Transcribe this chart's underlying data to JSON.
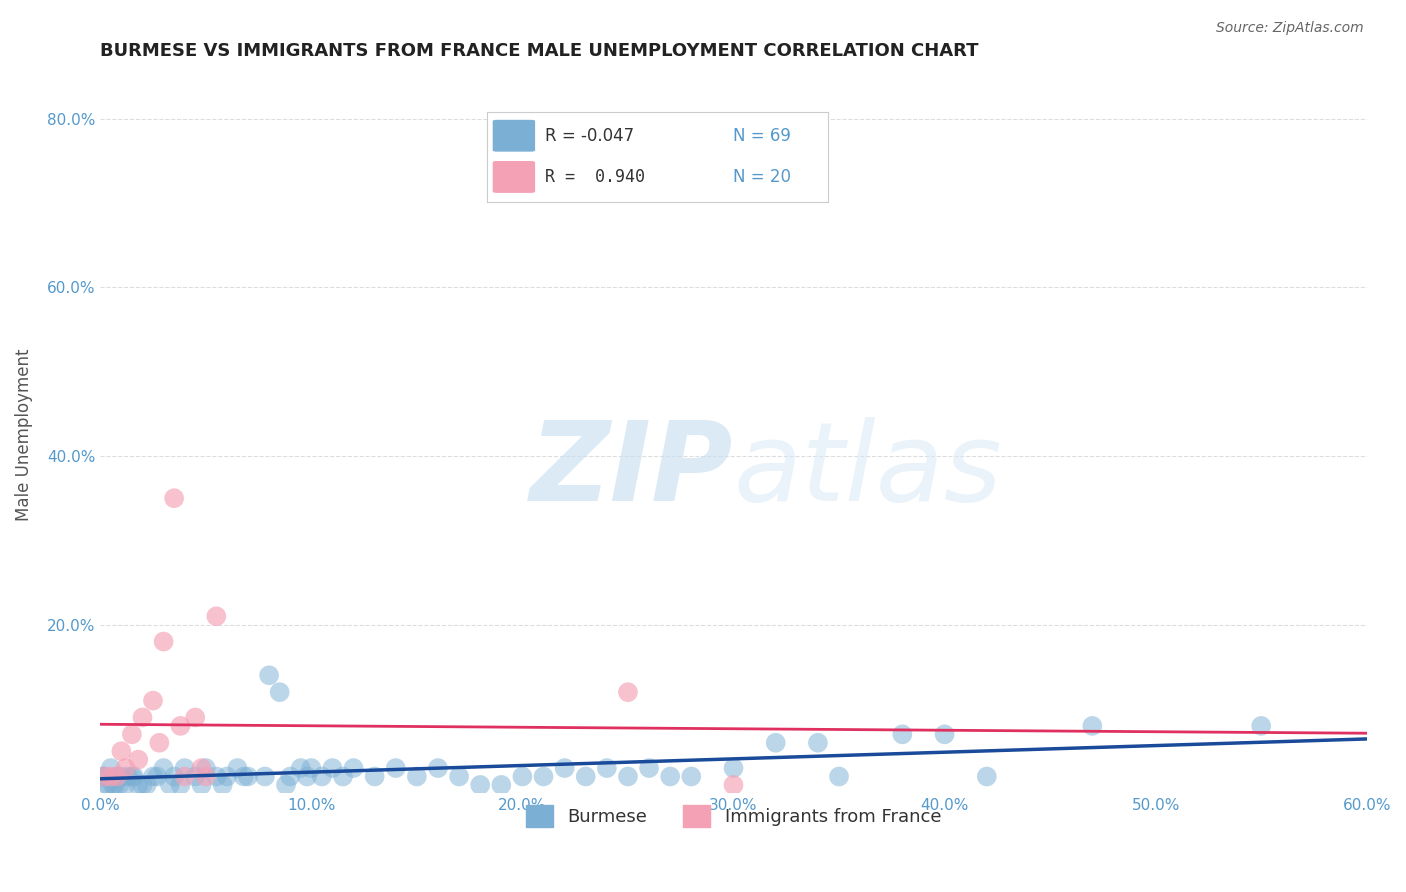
{
  "title": "BURMESE VS IMMIGRANTS FROM FRANCE MALE UNEMPLOYMENT CORRELATION CHART",
  "source": "Source: ZipAtlas.com",
  "ylabel": "Male Unemployment",
  "xlim": [
    0.0,
    0.6
  ],
  "ylim": [
    0.0,
    0.85
  ],
  "background_color": "#ffffff",
  "grid_color": "#dddddd",
  "blue_color": "#7bafd4",
  "pink_color": "#f4a0b5",
  "blue_line_color": "#1a4a9a",
  "pink_line_color": "#e03060",
  "tick_color": "#5599cc",
  "burmese_x": [
    0.005,
    0.008,
    0.003,
    0.007,
    0.01,
    0.012,
    0.015,
    0.02,
    0.025,
    0.03,
    0.035,
    0.04,
    0.045,
    0.05,
    0.055,
    0.06,
    0.065,
    0.07,
    0.08,
    0.085,
    0.09,
    0.095,
    0.1,
    0.105,
    0.11,
    0.115,
    0.12,
    0.13,
    0.14,
    0.15,
    0.16,
    0.17,
    0.18,
    0.19,
    0.2,
    0.21,
    0.22,
    0.23,
    0.24,
    0.25,
    0.26,
    0.27,
    0.28,
    0.3,
    0.32,
    0.34,
    0.35,
    0.38,
    0.4,
    0.42,
    0.001,
    0.002,
    0.004,
    0.006,
    0.009,
    0.013,
    0.016,
    0.018,
    0.022,
    0.027,
    0.033,
    0.038,
    0.048,
    0.058,
    0.068,
    0.078,
    0.088,
    0.098,
    0.55,
    0.47
  ],
  "burmese_y": [
    0.03,
    0.02,
    0.01,
    0.01,
    0.02,
    0.01,
    0.02,
    0.01,
    0.02,
    0.03,
    0.02,
    0.03,
    0.02,
    0.03,
    0.02,
    0.02,
    0.03,
    0.02,
    0.14,
    0.12,
    0.02,
    0.03,
    0.03,
    0.02,
    0.03,
    0.02,
    0.03,
    0.02,
    0.03,
    0.02,
    0.03,
    0.02,
    0.01,
    0.01,
    0.02,
    0.02,
    0.03,
    0.02,
    0.03,
    0.02,
    0.03,
    0.02,
    0.02,
    0.03,
    0.06,
    0.06,
    0.02,
    0.07,
    0.07,
    0.02,
    0.02,
    0.02,
    0.01,
    0.01,
    0.01,
    0.02,
    0.02,
    0.01,
    0.01,
    0.02,
    0.01,
    0.01,
    0.01,
    0.01,
    0.02,
    0.02,
    0.01,
    0.02,
    0.08,
    0.08
  ],
  "france_x": [
    0.005,
    0.01,
    0.015,
    0.02,
    0.025,
    0.03,
    0.035,
    0.04,
    0.045,
    0.05,
    0.002,
    0.008,
    0.012,
    0.018,
    0.028,
    0.038,
    0.048,
    0.3,
    0.25,
    0.055
  ],
  "france_y": [
    0.02,
    0.05,
    0.07,
    0.09,
    0.11,
    0.18,
    0.35,
    0.02,
    0.09,
    0.02,
    0.02,
    0.02,
    0.03,
    0.04,
    0.06,
    0.08,
    0.03,
    0.01,
    0.12,
    0.21
  ]
}
